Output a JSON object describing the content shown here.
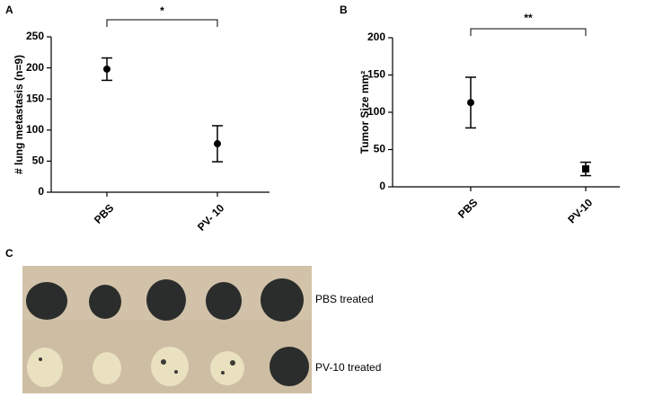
{
  "chart_data": [
    {
      "type": "errorbar",
      "panel_label": "A",
      "ylabel": "# lung metastasis (n=9)",
      "categories": [
        "PBS",
        "PV- 10"
      ],
      "values": [
        198,
        78
      ],
      "errors": [
        18,
        29
      ],
      "markers": [
        "circle",
        "circle"
      ],
      "color": "#000000",
      "ylim": [
        0,
        250
      ],
      "yticks": [
        0,
        50,
        100,
        150,
        200,
        250
      ],
      "significance": "*"
    },
    {
      "type": "errorbar",
      "panel_label": "B",
      "ylabel": "Tumor Size mm²",
      "categories": [
        "PBS",
        "PV-10"
      ],
      "values": [
        113,
        24
      ],
      "errors": [
        34,
        9
      ],
      "markers": [
        "circle",
        "square"
      ],
      "color": "#000000",
      "ylim": [
        0,
        200
      ],
      "yticks": [
        0,
        50,
        100,
        150,
        200
      ],
      "significance": "**"
    }
  ],
  "photo": {
    "panel_label": "C",
    "labels": [
      "PBS treated",
      "PV-10 treated"
    ]
  }
}
